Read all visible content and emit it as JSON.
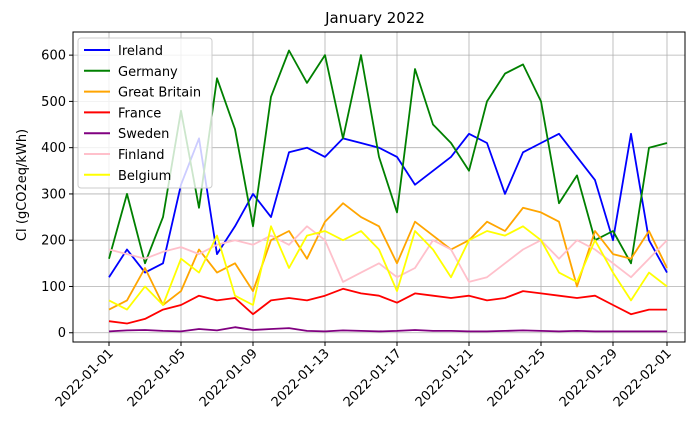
{
  "chart_data": {
    "type": "line",
    "title": "January 2022",
    "xlabel": "",
    "ylabel": "CI (gCO2eq/kWh)",
    "xlim": [
      "2021-12-30",
      "2022-02-02"
    ],
    "ylim": [
      -20,
      650
    ],
    "x_ticks": [
      "2022-01-01",
      "2022-01-05",
      "2022-01-09",
      "2022-01-13",
      "2022-01-17",
      "2022-01-21",
      "2022-01-25",
      "2022-01-29",
      "2022-02-01"
    ],
    "y_ticks": [
      0,
      100,
      200,
      300,
      400,
      500,
      600
    ],
    "grid": true,
    "legend_position": "top-left",
    "x": [
      "2022-01-01",
      "2022-01-02",
      "2022-01-03",
      "2022-01-04",
      "2022-01-05",
      "2022-01-06",
      "2022-01-07",
      "2022-01-08",
      "2022-01-09",
      "2022-01-10",
      "2022-01-11",
      "2022-01-12",
      "2022-01-13",
      "2022-01-14",
      "2022-01-15",
      "2022-01-16",
      "2022-01-17",
      "2022-01-18",
      "2022-01-19",
      "2022-01-20",
      "2022-01-21",
      "2022-01-22",
      "2022-01-23",
      "2022-01-24",
      "2022-01-25",
      "2022-01-26",
      "2022-01-27",
      "2022-01-28",
      "2022-01-29",
      "2022-01-30",
      "2022-01-31",
      "2022-02-01"
    ],
    "series": [
      {
        "name": "Ireland",
        "color": "#0000ff",
        "values": [
          120,
          180,
          130,
          150,
          320,
          420,
          170,
          230,
          300,
          250,
          390,
          400,
          380,
          420,
          410,
          400,
          380,
          320,
          350,
          380,
          430,
          410,
          300,
          390,
          410,
          430,
          380,
          330,
          200,
          430,
          200,
          130
        ]
      },
      {
        "name": "Germany",
        "color": "#008000",
        "values": [
          160,
          300,
          150,
          250,
          480,
          270,
          550,
          440,
          230,
          510,
          610,
          540,
          600,
          420,
          600,
          380,
          260,
          570,
          450,
          410,
          350,
          500,
          560,
          580,
          500,
          280,
          340,
          200,
          220,
          150,
          400,
          410
        ]
      },
      {
        "name": "Great Britain",
        "color": "#ffa500",
        "values": [
          50,
          70,
          140,
          60,
          90,
          180,
          130,
          150,
          90,
          200,
          220,
          160,
          240,
          280,
          250,
          230,
          150,
          240,
          210,
          180,
          200,
          240,
          220,
          270,
          260,
          240,
          100,
          220,
          170,
          160,
          220,
          140
        ]
      },
      {
        "name": "France",
        "color": "#ff0000",
        "values": [
          25,
          20,
          30,
          50,
          60,
          80,
          70,
          75,
          40,
          70,
          75,
          70,
          80,
          95,
          85,
          80,
          65,
          85,
          80,
          75,
          80,
          70,
          75,
          90,
          85,
          80,
          75,
          80,
          60,
          40,
          50,
          50
        ]
      },
      {
        "name": "Sweden",
        "color": "#800080",
        "values": [
          3,
          5,
          6,
          4,
          3,
          8,
          5,
          12,
          6,
          8,
          10,
          4,
          3,
          5,
          4,
          3,
          4,
          6,
          4,
          4,
          3,
          3,
          4,
          5,
          4,
          3,
          4,
          3,
          3,
          3,
          3,
          3
        ]
      },
      {
        "name": "Finland",
        "color": "#ffc0cb",
        "values": [
          180,
          170,
          160,
          175,
          185,
          170,
          190,
          200,
          190,
          210,
          190,
          230,
          200,
          110,
          130,
          150,
          120,
          140,
          200,
          180,
          110,
          120,
          150,
          180,
          200,
          160,
          200,
          180,
          150,
          120,
          160,
          200
        ]
      },
      {
        "name": "Belgium",
        "color": "#ffff00",
        "values": [
          70,
          50,
          100,
          60,
          160,
          130,
          210,
          80,
          60,
          230,
          140,
          210,
          220,
          200,
          220,
          180,
          90,
          220,
          180,
          120,
          200,
          220,
          210,
          230,
          200,
          130,
          110,
          200,
          130,
          70,
          130,
          100
        ]
      }
    ]
  }
}
